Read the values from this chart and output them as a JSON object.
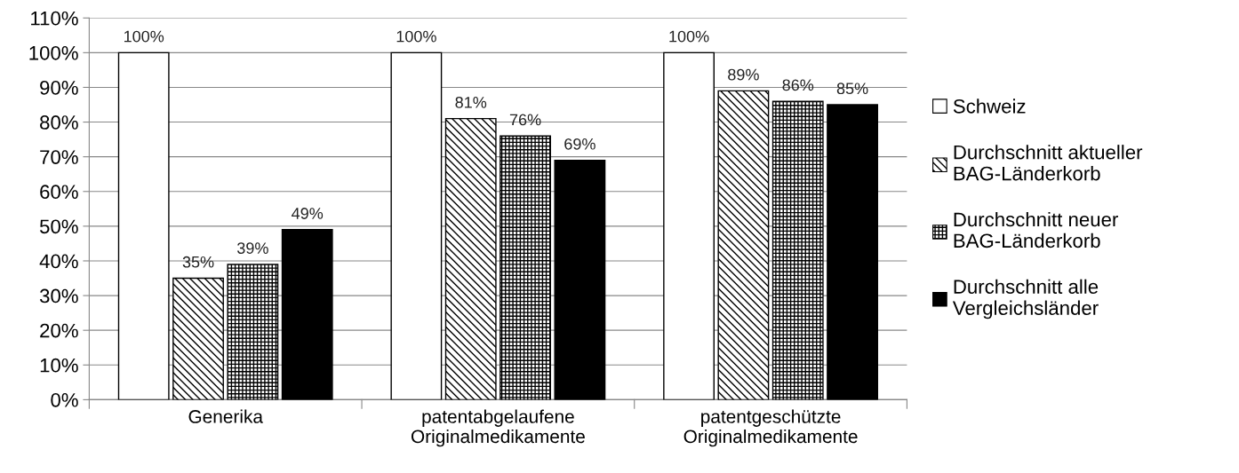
{
  "chart_data": {
    "type": "bar",
    "categories": [
      "Generika",
      "patentabgelaufene\nOriginalmedikamente",
      "patentgeschützte\nOriginalmedikamente"
    ],
    "series": [
      {
        "name": "Schweiz",
        "color": "#ffffff",
        "values": [
          100,
          100,
          100
        ],
        "value_labels": [
          "100%",
          "100%",
          "100%"
        ]
      },
      {
        "name": "Durchschnitt aktueller\nBAG-Länderkorb",
        "color": "#000000",
        "values": [
          35,
          81,
          89
        ],
        "value_labels": [
          "35%",
          "81%",
          "89%"
        ]
      },
      {
        "name": "Durchschnitt neuer\nBAG-Länderkorb",
        "color": "#000000",
        "values": [
          39,
          76,
          86
        ],
        "value_labels": [
          "39%",
          "76%",
          "86%"
        ]
      },
      {
        "name": "Durchschnitt alle\nVergleichsländer",
        "color": "#000000",
        "values": [
          49,
          69,
          85
        ],
        "value_labels": [
          "49%",
          "69%",
          "85%"
        ]
      }
    ],
    "ylim": [
      0,
      110
    ],
    "yticks": [
      {
        "value": 0,
        "label": "0%"
      },
      {
        "value": 10,
        "label": "10%"
      },
      {
        "value": 20,
        "label": "20%"
      },
      {
        "value": 30,
        "label": "30%"
      },
      {
        "value": 40,
        "label": "40%"
      },
      {
        "value": 50,
        "label": "50%"
      },
      {
        "value": 60,
        "label": "60%"
      },
      {
        "value": 70,
        "label": "70%"
      },
      {
        "value": 80,
        "label": "80%"
      },
      {
        "value": 90,
        "label": "90%"
      },
      {
        "value": 100,
        "label": "100%"
      },
      {
        "value": 110,
        "label": "110%"
      }
    ],
    "grid": "y",
    "legend": "right"
  }
}
